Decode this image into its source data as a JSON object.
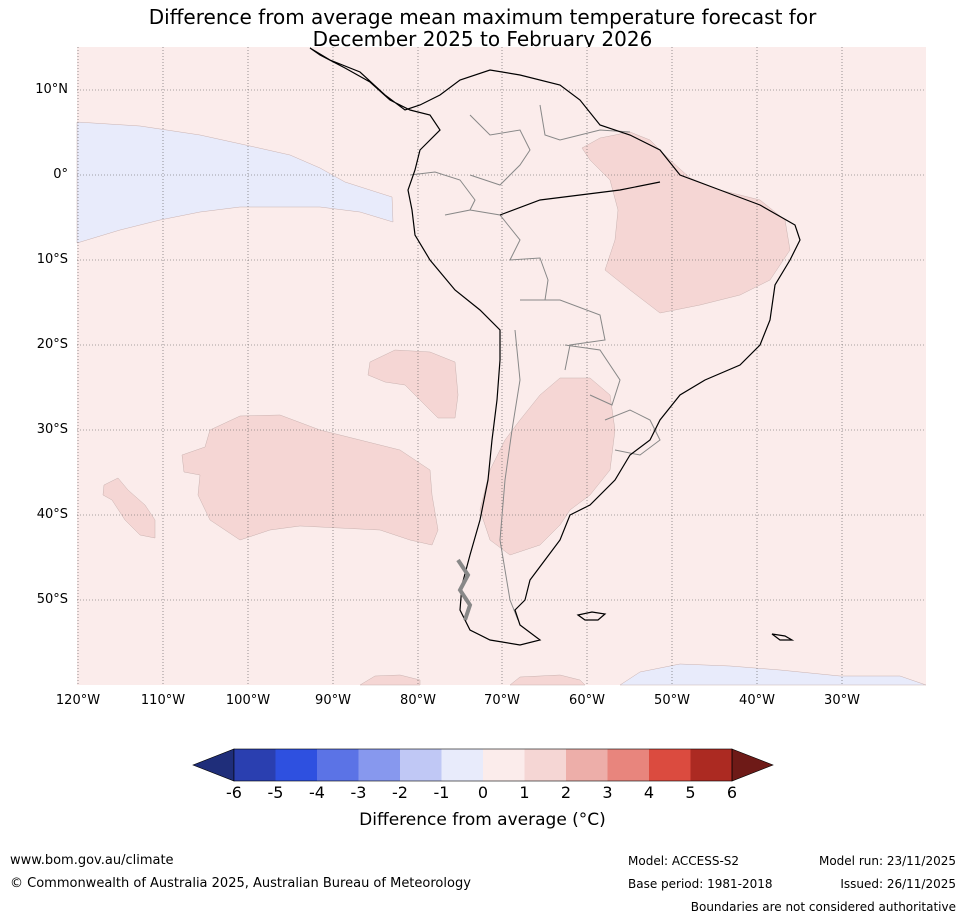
{
  "title": {
    "line1": "Difference from average mean maximum temperature forecast for",
    "line2": "December 2025 to February 2026"
  },
  "map": {
    "lat_labels": [
      "10°N",
      "0°",
      "10°S",
      "20°S",
      "30°S",
      "40°S",
      "50°S"
    ],
    "lon_labels": [
      "120°W",
      "110°W",
      "100°W",
      "90°W",
      "80°W",
      "70°W",
      "60°W",
      "50°W",
      "40°W",
      "30°W"
    ],
    "colors": {
      "band_0_1": "#fbeceb",
      "band_1_2": "#f5d6d4",
      "band_m1_0": "#e8ebfb",
      "coast": "#000000",
      "borders": "#888888"
    }
  },
  "colorbar": {
    "ticks": [
      "-6",
      "-5",
      "-4",
      "-3",
      "-2",
      "-1",
      "0",
      "1",
      "2",
      "3",
      "4",
      "5",
      "6"
    ],
    "colors": [
      "#1f2e7a",
      "#2a3fb0",
      "#2e50e0",
      "#5b73e6",
      "#8798ee",
      "#c0c8f5",
      "#e8ebfb",
      "#fbeceb",
      "#f5d6d4",
      "#edaea9",
      "#e8857d",
      "#db4b3f",
      "#ac2a22",
      "#6e1a17"
    ],
    "label": "Difference from average (°C)"
  },
  "footer": {
    "website": "www.bom.gov.au/climate",
    "copyright": "© Commonwealth of Australia 2025, Australian Bureau of Meteorology",
    "model": "Model: ACCESS-S2",
    "base_period": "Base period: 1981-2018",
    "model_run": "Model run: 23/11/2025",
    "issued": "Issued: 26/11/2025",
    "disclaimer": "Boundaries are not considered authoritative"
  }
}
